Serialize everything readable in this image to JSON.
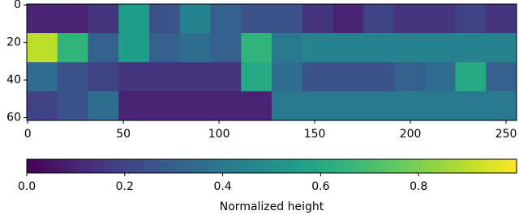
{
  "chart_data": {
    "type": "heatmap",
    "xlim": [
      -0.5,
      255.5
    ],
    "ylim": [
      61.5,
      -0.5
    ],
    "xticks": [
      0,
      50,
      100,
      150,
      200,
      250
    ],
    "yticks": [
      0,
      20,
      40,
      60
    ],
    "values": [
      [
        0.1,
        0.1,
        0.15,
        0.55,
        0.25,
        0.45,
        0.3,
        0.25,
        0.25,
        0.15,
        0.1,
        0.2,
        0.15,
        0.15,
        0.2,
        0.15
      ],
      [
        0.9,
        0.65,
        0.3,
        0.55,
        0.3,
        0.35,
        0.3,
        0.65,
        0.4,
        0.45,
        0.45,
        0.45,
        0.45,
        0.45,
        0.45,
        0.45
      ],
      [
        0.35,
        0.25,
        0.2,
        0.15,
        0.15,
        0.15,
        0.15,
        0.6,
        0.35,
        0.25,
        0.25,
        0.25,
        0.3,
        0.35,
        0.6,
        0.3
      ],
      [
        0.2,
        0.25,
        0.35,
        0.1,
        0.1,
        0.1,
        0.1,
        0.1,
        0.4,
        0.4,
        0.4,
        0.4,
        0.4,
        0.4,
        0.4,
        0.4
      ]
    ],
    "colormap": "viridis",
    "colorbar": {
      "clim": [
        0,
        1
      ],
      "label": "Normalized height",
      "ticks": [
        {
          "value": 0,
          "label": "0.0"
        },
        0.2,
        0.4,
        0.6,
        0.8
      ]
    }
  }
}
